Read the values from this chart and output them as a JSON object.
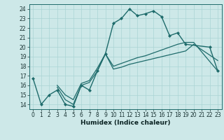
{
  "xlabel": "Humidex (Indice chaleur)",
  "xlim": [
    -0.5,
    23.5
  ],
  "ylim": [
    13.5,
    24.5
  ],
  "yticks": [
    14,
    15,
    16,
    17,
    18,
    19,
    20,
    21,
    22,
    23,
    24
  ],
  "xticks": [
    0,
    1,
    2,
    3,
    4,
    5,
    6,
    7,
    8,
    9,
    10,
    11,
    12,
    13,
    14,
    15,
    16,
    17,
    18,
    19,
    20,
    21,
    22,
    23
  ],
  "bg_color": "#cde8e8",
  "line_color": "#1e6b6b",
  "grid_color": "#aad4d4",
  "line1_x": [
    0,
    1,
    2,
    3,
    4,
    5,
    6,
    7,
    8,
    9,
    10,
    11,
    12,
    13,
    14,
    15,
    16,
    17,
    18,
    19,
    22,
    23
  ],
  "line1_y": [
    16.7,
    14.0,
    15.0,
    15.5,
    14.0,
    13.8,
    16.0,
    15.5,
    17.5,
    19.3,
    22.5,
    23.0,
    24.0,
    23.3,
    23.5,
    23.8,
    23.2,
    21.2,
    21.5,
    20.3,
    20.0,
    17.5
  ],
  "line2_x": [
    3,
    4,
    5,
    6,
    7,
    8,
    9,
    10,
    11,
    12,
    13,
    14,
    15,
    16,
    17,
    18,
    19,
    20,
    23
  ],
  "line2_y": [
    15.8,
    14.5,
    14.0,
    16.0,
    16.3,
    17.5,
    19.3,
    17.7,
    17.9,
    18.2,
    18.4,
    18.6,
    18.8,
    19.0,
    19.2,
    19.4,
    19.6,
    20.3,
    18.6
  ],
  "line3_x": [
    3,
    4,
    5,
    6,
    7,
    8,
    9,
    10,
    11,
    12,
    13,
    14,
    15,
    16,
    17,
    18,
    19,
    20,
    23
  ],
  "line3_y": [
    16.0,
    15.0,
    14.5,
    16.2,
    16.5,
    17.8,
    19.3,
    18.0,
    18.3,
    18.6,
    18.9,
    19.1,
    19.4,
    19.7,
    20.0,
    20.3,
    20.5,
    20.5,
    17.5
  ],
  "tick_fontsize": 5.5,
  "xlabel_fontsize": 6.5
}
